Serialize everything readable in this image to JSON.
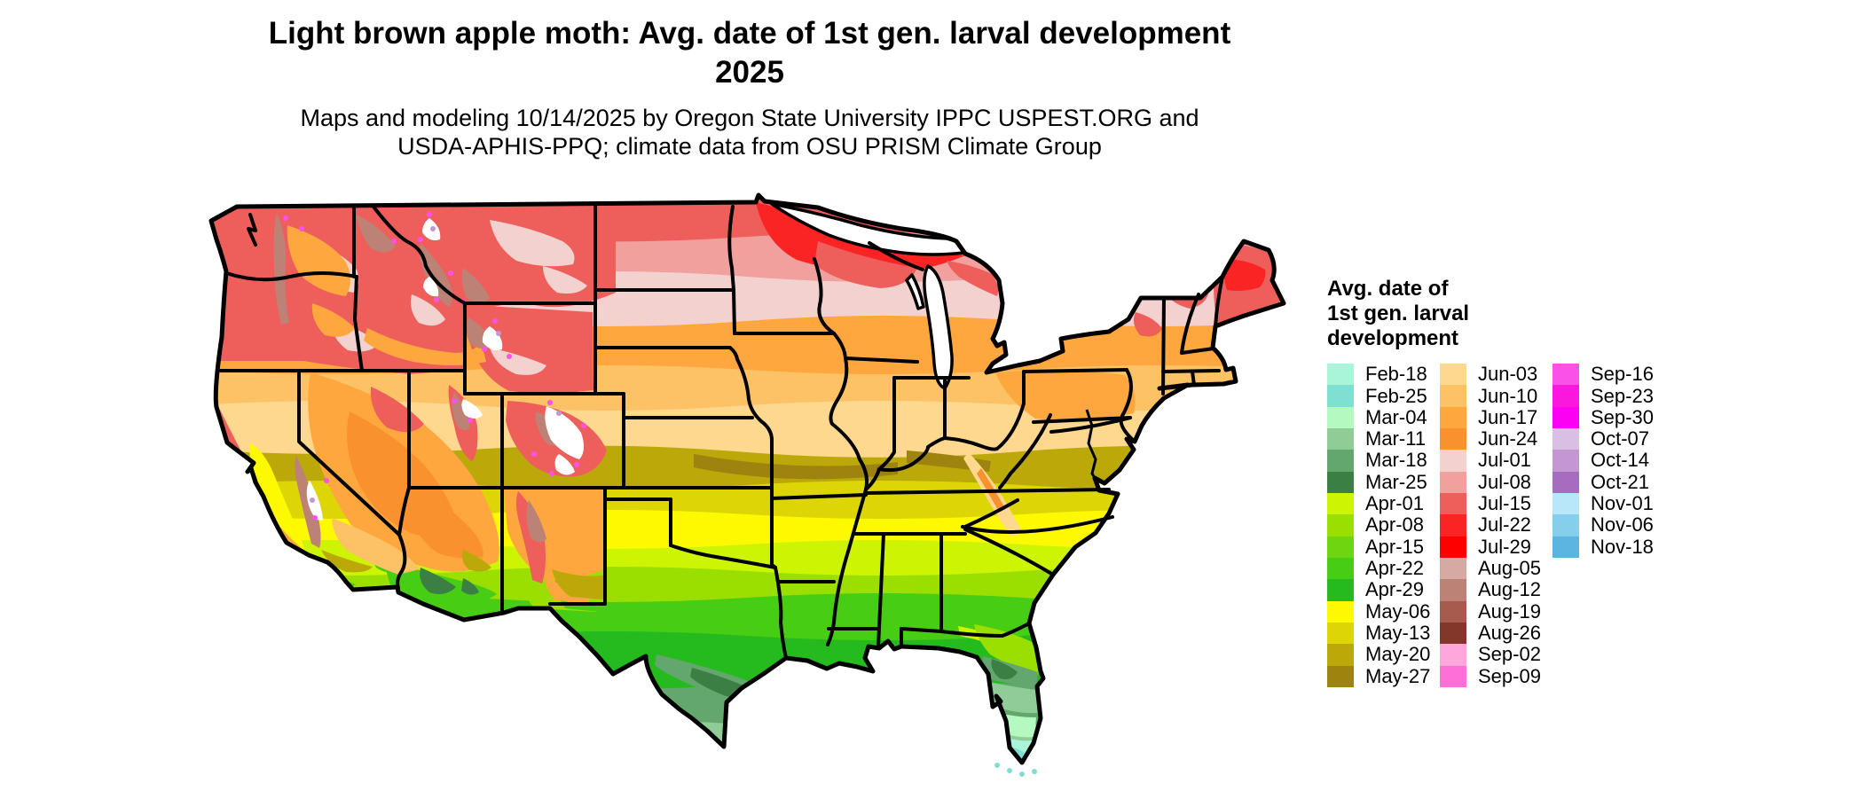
{
  "header": {
    "title_line1": "Light brown apple moth: Avg. date of 1st gen. larval development",
    "title_line2": "2025",
    "subtitle_line1": "Maps and modeling 10/14/2025 by Oregon State University IPPC USPEST.ORG and",
    "subtitle_line2": "USDA-APHIS-PPQ; climate data from OSU PRISM Climate Group"
  },
  "legend": {
    "title_line1": "Avg. date of",
    "title_line2": "1st gen. larval",
    "title_line3": "development",
    "columns": [
      [
        {
          "label": "Feb-18",
          "color": "#A9F5D9"
        },
        {
          "label": "Feb-25",
          "color": "#7FDFD0"
        },
        {
          "label": "Mar-04",
          "color": "#B4FAC0"
        },
        {
          "label": "Mar-11",
          "color": "#8FCC97"
        },
        {
          "label": "Mar-18",
          "color": "#63A76E"
        },
        {
          "label": "Mar-25",
          "color": "#3C7F45"
        },
        {
          "label": "Apr-01",
          "color": "#CDF402"
        },
        {
          "label": "Apr-08",
          "color": "#9BDF00"
        },
        {
          "label": "Apr-15",
          "color": "#70D511"
        },
        {
          "label": "Apr-22",
          "color": "#46CD14"
        },
        {
          "label": "Apr-29",
          "color": "#25BA1E"
        },
        {
          "label": "May-06",
          "color": "#FDF900"
        },
        {
          "label": "May-13",
          "color": "#DDD506"
        },
        {
          "label": "May-20",
          "color": "#BBA90A"
        },
        {
          "label": "May-27",
          "color": "#9D840E"
        }
      ],
      [
        {
          "label": "Jun-03",
          "color": "#FED88E"
        },
        {
          "label": "Jun-10",
          "color": "#FEC266"
        },
        {
          "label": "Jun-17",
          "color": "#FEA73E"
        },
        {
          "label": "Jun-24",
          "color": "#F9922E"
        },
        {
          "label": "Jul-01",
          "color": "#F3D1CF"
        },
        {
          "label": "Jul-08",
          "color": "#F0A19D"
        },
        {
          "label": "Jul-15",
          "color": "#EE5F5C"
        },
        {
          "label": "Jul-22",
          "color": "#FB2424"
        },
        {
          "label": "Jul-29",
          "color": "#FE0000"
        },
        {
          "label": "Aug-05",
          "color": "#D4AAA2"
        },
        {
          "label": "Aug-12",
          "color": "#BD8276"
        },
        {
          "label": "Aug-19",
          "color": "#A65B4E"
        },
        {
          "label": "Aug-26",
          "color": "#83372A"
        },
        {
          "label": "Sep-02",
          "color": "#FEA7DC"
        },
        {
          "label": "Sep-09",
          "color": "#FE70D8"
        }
      ],
      [
        {
          "label": "Sep-16",
          "color": "#FA51E8"
        },
        {
          "label": "Sep-23",
          "color": "#FB17DE"
        },
        {
          "label": "Sep-30",
          "color": "#FB00F2"
        },
        {
          "label": "Oct-07",
          "color": "#D9BFE2"
        },
        {
          "label": "Oct-14",
          "color": "#C497D3"
        },
        {
          "label": "Oct-21",
          "color": "#A76CBF"
        },
        {
          "label": "Nov-01",
          "color": "#B7E7F8"
        },
        {
          "label": "Nov-06",
          "color": "#86CFEC"
        },
        {
          "label": "Nov-18",
          "color": "#5CB5E0"
        }
      ]
    ]
  }
}
